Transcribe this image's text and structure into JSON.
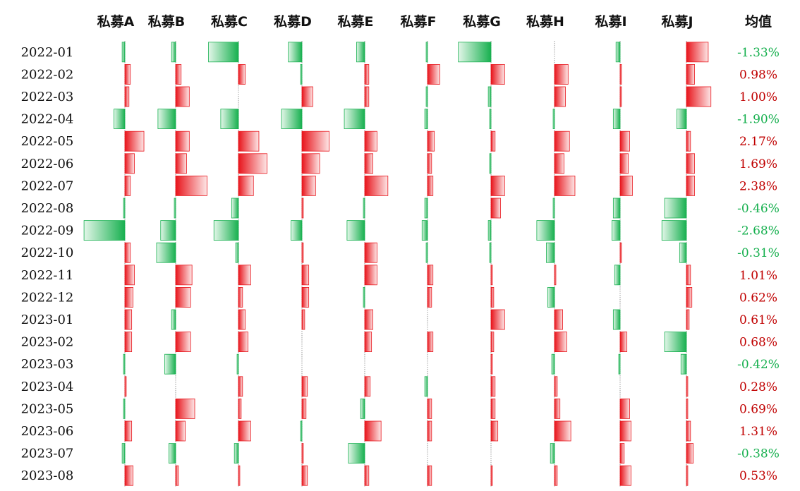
{
  "chart_data": {
    "type": "table",
    "colors": {
      "positive": "#e8141b",
      "negative": "#17b04f",
      "axis": "#555555"
    },
    "columns": [
      "私募A",
      "私募B",
      "私募C",
      "私募D",
      "私募E",
      "私募F",
      "私募G",
      "私募H",
      "私募I",
      "私募J"
    ],
    "average_label": "均值",
    "rows": [
      {
        "month": "2022-01",
        "values": [
          -0.2,
          -0.3,
          -2.2,
          -1.0,
          -0.6,
          -0.1,
          -2.4,
          0.0,
          -0.3,
          1.6
        ],
        "average": "-1.33%",
        "average_value": -1.33
      },
      {
        "month": "2022-02",
        "values": [
          0.4,
          0.4,
          0.5,
          -0.1,
          0.3,
          0.9,
          1.0,
          1.0,
          0.1,
          0.6
        ],
        "average": "0.98%",
        "average_value": 0.98
      },
      {
        "month": "2022-03",
        "values": [
          0.3,
          1.0,
          0.0,
          0.8,
          0.3,
          -0.1,
          -0.2,
          0.8,
          0.1,
          1.8
        ],
        "average": "1.00%",
        "average_value": 1.0
      },
      {
        "month": "2022-04",
        "values": [
          -0.8,
          -1.3,
          -1.3,
          -1.5,
          -1.5,
          -0.2,
          -0.1,
          -0.1,
          -0.5,
          -0.7
        ],
        "average": "-1.90%",
        "average_value": -1.9
      },
      {
        "month": "2022-05",
        "values": [
          1.4,
          1.0,
          1.5,
          2.0,
          0.9,
          0.5,
          0.3,
          1.1,
          0.7,
          0.3
        ],
        "average": "2.17%",
        "average_value": 2.17
      },
      {
        "month": "2022-06",
        "values": [
          0.7,
          0.8,
          2.1,
          1.3,
          0.6,
          0.3,
          -0.1,
          0.7,
          0.6,
          0.6
        ],
        "average": "1.69%",
        "average_value": 1.69
      },
      {
        "month": "2022-07",
        "values": [
          0.4,
          2.3,
          1.1,
          1.0,
          1.7,
          0.4,
          1.0,
          1.5,
          0.9,
          0.6
        ],
        "average": "2.38%",
        "average_value": 2.38
      },
      {
        "month": "2022-08",
        "values": [
          -0.1,
          -0.1,
          -0.5,
          0.1,
          -0.1,
          -0.2,
          0.7,
          -0.1,
          -0.5,
          -1.6
        ],
        "average": "-0.46%",
        "average_value": -0.46
      },
      {
        "month": "2022-09",
        "values": [
          -3.0,
          -1.1,
          -1.8,
          -0.8,
          -1.3,
          -0.4,
          -0.2,
          -1.3,
          -0.6,
          -1.8
        ],
        "average": "-2.68%",
        "average_value": -2.68
      },
      {
        "month": "2022-10",
        "values": [
          0.4,
          -1.4,
          -0.2,
          0.1,
          0.9,
          -0.1,
          -0.1,
          -0.6,
          0.1,
          -0.5
        ],
        "average": "-0.31%",
        "average_value": -0.31
      },
      {
        "month": "2022-11",
        "values": [
          0.7,
          1.2,
          0.9,
          0.5,
          0.9,
          0.4,
          0.1,
          0.1,
          -0.4,
          0.3
        ],
        "average": "1.01%",
        "average_value": 1.01
      },
      {
        "month": "2022-12",
        "values": [
          0.6,
          1.1,
          0.3,
          0.5,
          -0.1,
          0.3,
          0.2,
          -0.5,
          0.0,
          0.4
        ],
        "average": "0.62%",
        "average_value": 0.62
      },
      {
        "month": "2023-01",
        "values": [
          0.5,
          -0.3,
          0.5,
          0.2,
          0.6,
          0.0,
          1.0,
          0.6,
          -0.5,
          0.2
        ],
        "average": "0.61%",
        "average_value": 0.61
      },
      {
        "month": "2023-02",
        "values": [
          0.5,
          1.1,
          0.7,
          0.0,
          0.5,
          0.4,
          0.2,
          0.9,
          0.5,
          -1.6
        ],
        "average": "0.68%",
        "average_value": 0.68
      },
      {
        "month": "2023-03",
        "values": [
          -0.1,
          -0.8,
          -0.1,
          0.0,
          0.0,
          0.0,
          0.1,
          -0.2,
          -0.1,
          -0.4
        ],
        "average": "-0.42%",
        "average_value": -0.42
      },
      {
        "month": "2023-04",
        "values": [
          0.1,
          0.0,
          0.3,
          0.4,
          0.4,
          -0.2,
          0.3,
          0.2,
          0.0,
          0.1
        ],
        "average": "0.28%",
        "average_value": 0.28
      },
      {
        "month": "2023-05",
        "values": [
          -0.1,
          1.4,
          0.2,
          0.3,
          -0.3,
          0.3,
          0.3,
          0.4,
          0.7,
          0.1
        ],
        "average": "0.69%",
        "average_value": 0.69
      },
      {
        "month": "2023-06",
        "values": [
          0.5,
          0.7,
          0.9,
          -0.1,
          1.2,
          0.3,
          0.5,
          1.2,
          0.8,
          0.3
        ],
        "average": "1.31%",
        "average_value": 1.31
      },
      {
        "month": "2023-07",
        "values": [
          -0.2,
          -0.5,
          -0.3,
          0.1,
          -1.2,
          0.0,
          0.0,
          -0.3,
          0.3,
          0.5
        ],
        "average": "-0.38%",
        "average_value": -0.38
      },
      {
        "month": "2023-08",
        "values": [
          0.6,
          0.2,
          0.1,
          0.4,
          0.3,
          0.3,
          0.1,
          0.2,
          0.8,
          0.1
        ],
        "average": "0.53%",
        "average_value": 0.53
      }
    ]
  }
}
